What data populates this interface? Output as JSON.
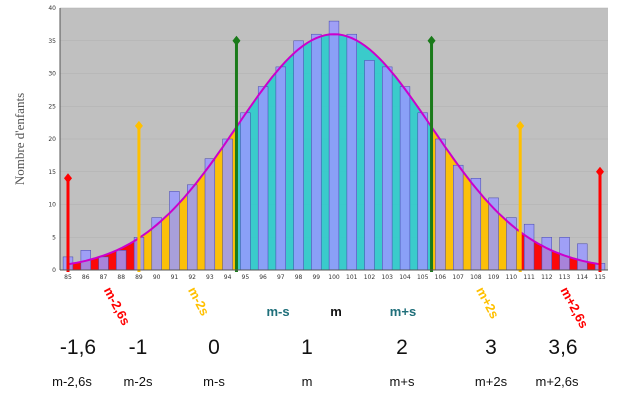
{
  "chart_data": {
    "type": "bar",
    "ylabel": "Nombre d'enfants",
    "ylim": [
      0,
      40
    ],
    "yticks": [
      0,
      5,
      10,
      15,
      20,
      25,
      30,
      35,
      40
    ],
    "categories": [
      "85",
      "86",
      "87",
      "88",
      "89",
      "90",
      "91",
      "92",
      "93",
      "94",
      "95",
      "96",
      "97",
      "98",
      "99",
      "100",
      "101",
      "102",
      "103",
      "104",
      "105",
      "106",
      "107",
      "108",
      "109",
      "110",
      "111",
      "112",
      "113",
      "114",
      "115"
    ],
    "values": [
      2,
      3,
      2,
      3,
      5,
      8,
      12,
      13,
      17,
      20,
      24,
      28,
      31,
      35,
      36,
      38,
      36,
      32,
      31,
      28,
      24,
      20,
      16,
      14,
      11,
      8,
      7,
      5,
      5,
      4,
      1
    ],
    "normal_curve": {
      "mean": 100,
      "sd": 5.5,
      "peak": 36
    },
    "regions": [
      {
        "from": 85,
        "to": 89,
        "color": "#ff0000",
        "label": "m-2,6s"
      },
      {
        "from": 89,
        "to": 94.5,
        "color": "#ffc000",
        "label": "m-2s"
      },
      {
        "from": 94.5,
        "to": 105.5,
        "color": "#33cccc",
        "label": ""
      },
      {
        "from": 105.5,
        "to": 110.5,
        "color": "#ffc000",
        "label": "m+2s"
      },
      {
        "from": 110.5,
        "to": 115,
        "color": "#ff0000",
        "label": "m+2,6s"
      }
    ],
    "markers": [
      {
        "x": 85,
        "color": "#ff0000",
        "height": 14
      },
      {
        "x": 89,
        "color": "#ffc000",
        "height": 22
      },
      {
        "x": 94.5,
        "color": "#1a7a1a",
        "height": 35
      },
      {
        "x": 105.5,
        "color": "#1a7a1a",
        "height": 35
      },
      {
        "x": 110.5,
        "color": "#ffc000",
        "height": 22
      },
      {
        "x": 115,
        "color": "#ff0000",
        "height": 15
      }
    ],
    "band_labels": [
      {
        "text": "m-s",
        "color": "#1f6f7a"
      },
      {
        "text": "m",
        "color": "#111111"
      },
      {
        "text": "m+s",
        "color": "#1f6f7a"
      }
    ],
    "colors": {
      "plot_bg": "#c0c0c0",
      "bar": "#9999ff",
      "curve": "#cc00cc"
    }
  },
  "z_row": [
    "-1,6",
    "-1",
    "0",
    "1",
    "2",
    "3",
    "3,6"
  ],
  "label_row": [
    "m-2,6s",
    "m-2s",
    "m-s",
    "m",
    "m+s",
    "m+2s",
    "m+2,6s"
  ]
}
